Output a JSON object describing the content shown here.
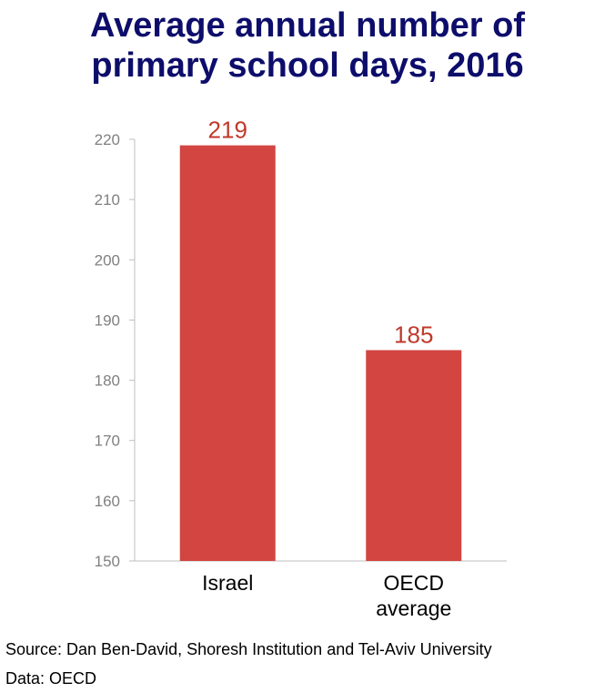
{
  "title_lines": [
    "Average annual number of",
    "primary school days, 2016"
  ],
  "chart_data": {
    "type": "bar",
    "title": "Average annual number of primary school days, 2016",
    "categories": [
      [
        "Israel"
      ],
      [
        "OECD",
        "average"
      ]
    ],
    "values": [
      219,
      185
    ],
    "data_labels": [
      "219",
      "185"
    ],
    "ylim": [
      150,
      220
    ],
    "yticks": [
      150,
      160,
      170,
      180,
      190,
      200,
      210,
      220
    ],
    "xlabel": "",
    "ylabel": "",
    "grid": false,
    "bar_color": "#d24540",
    "label_color": "#c0392b",
    "tick_color": "#808080"
  },
  "footer": {
    "source": "Source: Dan Ben-David, Shoresh Institution and Tel-Aviv University",
    "data": "Data: OECD"
  }
}
